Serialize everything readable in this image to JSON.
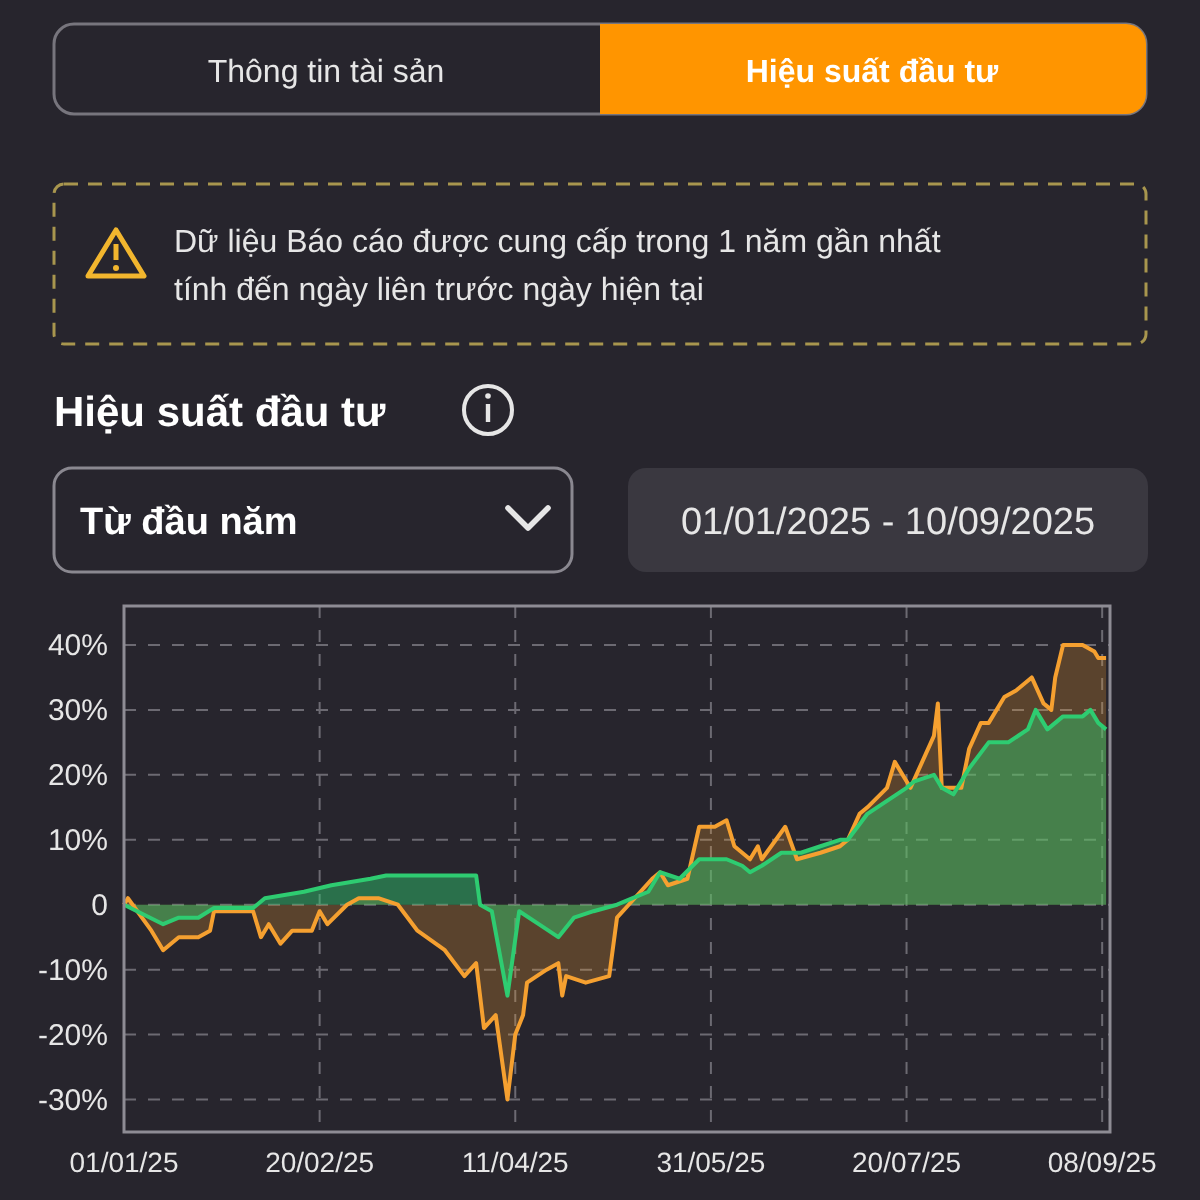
{
  "chart_data": {
    "type": "area",
    "title": "Hiệu suất đầu tư",
    "annotations": [
      "Thông tin tài sản",
      "Hiệu suất đầu tư",
      "Dữ liệu Báo cáo được cung cấp trong 1 năm gần nhất tính đến ngày liên trước ngày hiện tại",
      "Từ đầu năm",
      "01/01/2025 - 10/09/2025"
    ],
    "xlim": [
      "2025-01-01",
      "2025-09-10"
    ],
    "xticks": [
      {
        "value": "2025-01-01",
        "label": "01/01/25"
      },
      {
        "value": "2025-02-20",
        "label": "20/02/25"
      },
      {
        "value": "2025-04-11",
        "label": "11/04/25"
      },
      {
        "value": "2025-05-31",
        "label": "31/05/25"
      },
      {
        "value": "2025-07-20",
        "label": "20/07/25"
      },
      {
        "value": "2025-09-08",
        "label": "08/09/25"
      }
    ],
    "ylim": [
      -35,
      46
    ],
    "yticks": [
      {
        "value": -30,
        "label": "-30%"
      },
      {
        "value": -20,
        "label": "-20%"
      },
      {
        "value": -10,
        "label": "-10%"
      },
      0,
      {
        "value": 10,
        "label": "10%"
      },
      {
        "value": 20,
        "label": "20%"
      },
      {
        "value": 30,
        "label": "30%"
      },
      {
        "value": 40,
        "label": "40%"
      }
    ],
    "grid": true,
    "series": [
      {
        "color": "#f5a030",
        "x": [
          "2025-01-01",
          "2025-01-02",
          "2025-01-08",
          "2025-01-11",
          "2025-01-15",
          "2025-01-20",
          "2025-01-23",
          "2025-01-24",
          "2025-02-03",
          "2025-02-05",
          "2025-02-07",
          "2025-02-10",
          "2025-02-13",
          "2025-02-18",
          "2025-02-20",
          "2025-02-22",
          "2025-02-27",
          "2025-03-02",
          "2025-03-07",
          "2025-03-12",
          "2025-03-17",
          "2025-03-24",
          "2025-03-29",
          "2025-04-01",
          "2025-04-03",
          "2025-04-06",
          "2025-04-09",
          "2025-04-11",
          "2025-04-13",
          "2025-04-14",
          "2025-04-19",
          "2025-04-22",
          "2025-04-23",
          "2025-04-24",
          "2025-04-29",
          "2025-05-05",
          "2025-05-07",
          "2025-05-10",
          "2025-05-13",
          "2025-05-16",
          "2025-05-18",
          "2025-05-20",
          "2025-05-25",
          "2025-05-28",
          "2025-06-01",
          "2025-06-04",
          "2025-06-06",
          "2025-06-10",
          "2025-06-12",
          "2025-06-13",
          "2025-06-19",
          "2025-06-22",
          "2025-06-28",
          "2025-07-03",
          "2025-07-05",
          "2025-07-08",
          "2025-07-10",
          "2025-07-15",
          "2025-07-17",
          "2025-07-21",
          "2025-07-24",
          "2025-07-27",
          "2025-07-28",
          "2025-07-29",
          "2025-08-03",
          "2025-08-05",
          "2025-08-08",
          "2025-08-10",
          "2025-08-14",
          "2025-08-17",
          "2025-08-21",
          "2025-08-24",
          "2025-08-26",
          "2025-08-27",
          "2025-08-29",
          "2025-09-03",
          "2025-09-06",
          "2025-09-07",
          "2025-09-09"
        ],
        "values": [
          0,
          1,
          -4,
          -7,
          -5,
          -5,
          -4,
          -1,
          -1,
          -5,
          -3,
          -6,
          -4,
          -4,
          -1,
          -3,
          0,
          1,
          1,
          0,
          -4,
          -7,
          -11,
          -9,
          -19,
          -17,
          -30,
          -20,
          -17,
          -12,
          -10,
          -9,
          -14,
          -11,
          -12,
          -11,
          -2,
          0,
          2,
          4,
          5,
          3,
          4,
          12,
          12,
          13,
          9,
          7,
          9,
          7,
          12,
          7,
          8,
          9,
          10,
          14,
          15,
          18,
          22,
          18,
          22,
          26,
          31,
          18,
          18,
          24,
          28,
          28,
          32,
          33,
          35,
          31,
          30,
          35,
          40,
          40,
          39,
          38,
          38
        ]
      },
      {
        "color": "#2ecc71",
        "x": [
          "2025-01-01",
          "2025-01-11",
          "2025-01-15",
          "2025-01-20",
          "2025-01-24",
          "2025-02-03",
          "2025-02-06",
          "2025-02-16",
          "2025-02-23",
          "2025-03-05",
          "2025-03-09",
          "2025-03-24",
          "2025-04-01",
          "2025-04-02",
          "2025-04-05",
          "2025-04-09",
          "2025-04-12",
          "2025-04-17",
          "2025-04-22",
          "2025-04-26",
          "2025-05-01",
          "2025-05-07",
          "2025-05-11",
          "2025-05-15",
          "2025-05-18",
          "2025-05-23",
          "2025-05-28",
          "2025-06-04",
          "2025-06-08",
          "2025-06-10",
          "2025-06-13",
          "2025-06-18",
          "2025-06-23",
          "2025-06-28",
          "2025-07-03",
          "2025-07-05",
          "2025-07-10",
          "2025-07-15",
          "2025-07-20",
          "2025-07-22",
          "2025-07-27",
          "2025-07-29",
          "2025-08-01",
          "2025-08-05",
          "2025-08-10",
          "2025-08-15",
          "2025-08-20",
          "2025-08-22",
          "2025-08-25",
          "2025-08-29",
          "2025-09-03",
          "2025-09-05",
          "2025-09-07",
          "2025-09-09"
        ],
        "values": [
          0,
          -3,
          -2,
          -2,
          -0.5,
          -0.5,
          1,
          2,
          3,
          4,
          4.5,
          4.5,
          4.5,
          0,
          -1,
          -14,
          -1,
          -3,
          -5,
          -2,
          -1,
          0,
          1,
          2,
          5,
          4,
          7,
          7,
          6,
          5,
          6,
          8,
          8,
          9,
          10,
          10,
          14,
          16,
          18,
          19,
          20,
          18,
          17,
          21,
          25,
          25,
          27,
          30,
          27,
          29,
          29,
          30,
          28,
          27
        ]
      }
    ]
  }
}
